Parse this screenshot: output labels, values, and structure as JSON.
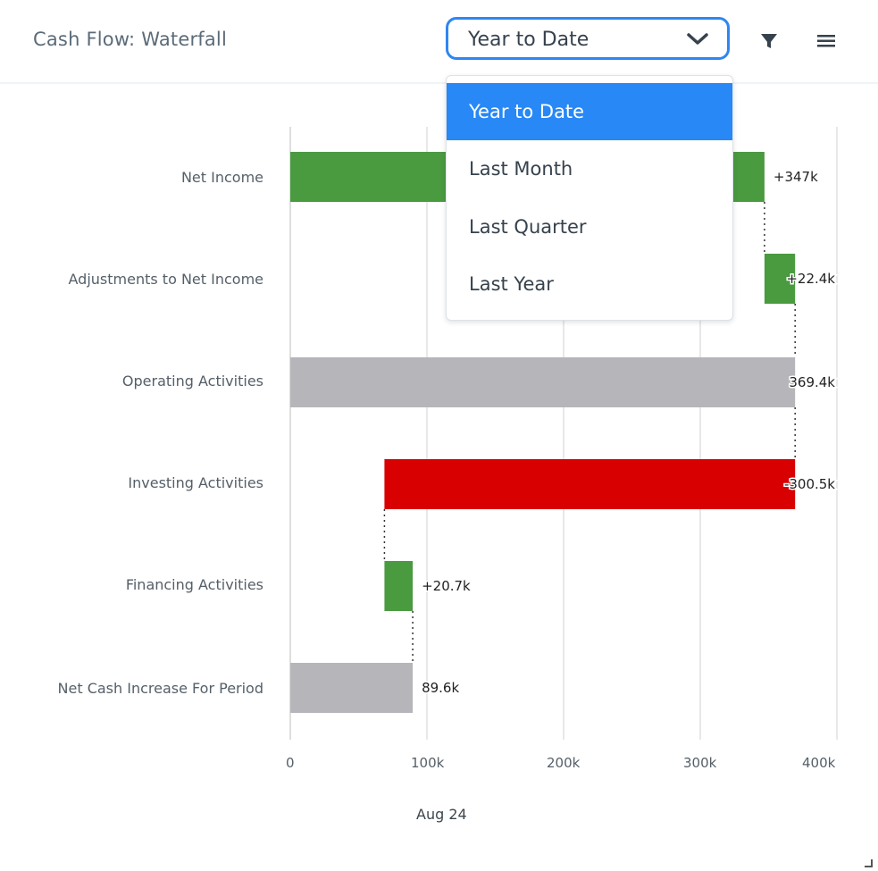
{
  "header": {
    "title": "Cash Flow: Waterfall",
    "period_select_value": "Year to Date"
  },
  "dropdown": {
    "options": [
      "Year to Date",
      "Last Month",
      "Last Quarter",
      "Last Year"
    ],
    "selected": "Year to Date"
  },
  "icons": {
    "filter": "filter-icon",
    "menu": "hamburger-menu-icon",
    "chevron": "chevron-down-icon",
    "resize": "resize-handle-icon"
  },
  "colors": {
    "increase": "#4a9a40",
    "decrease": "#d80000",
    "total": "#b6b6ba",
    "accent": "#2f86f2"
  },
  "chart_data": {
    "type": "waterfall",
    "title": "Cash Flow: Waterfall",
    "xlabel": "Aug 24",
    "xlim": [
      0,
      400000
    ],
    "x_ticks": [
      0,
      100000,
      200000,
      300000,
      400000
    ],
    "x_tick_labels": [
      "0",
      "100k",
      "200k",
      "300k",
      "400k"
    ],
    "grid": true,
    "categories": [
      "Net Income",
      "Adjustments to Net Income",
      "Operating Activities",
      "Investing Activities",
      "Financing Activities",
      "Net Cash Increase For Period"
    ],
    "values": [
      347000,
      22400,
      369400,
      -300500,
      20700,
      89600
    ],
    "kinds": [
      "increase",
      "increase",
      "total",
      "decrease",
      "increase",
      "total"
    ],
    "data_labels": [
      "+347k",
      "+22.4k",
      "369.4k",
      "-300.5k",
      "+20.7k",
      "89.6k"
    ]
  }
}
